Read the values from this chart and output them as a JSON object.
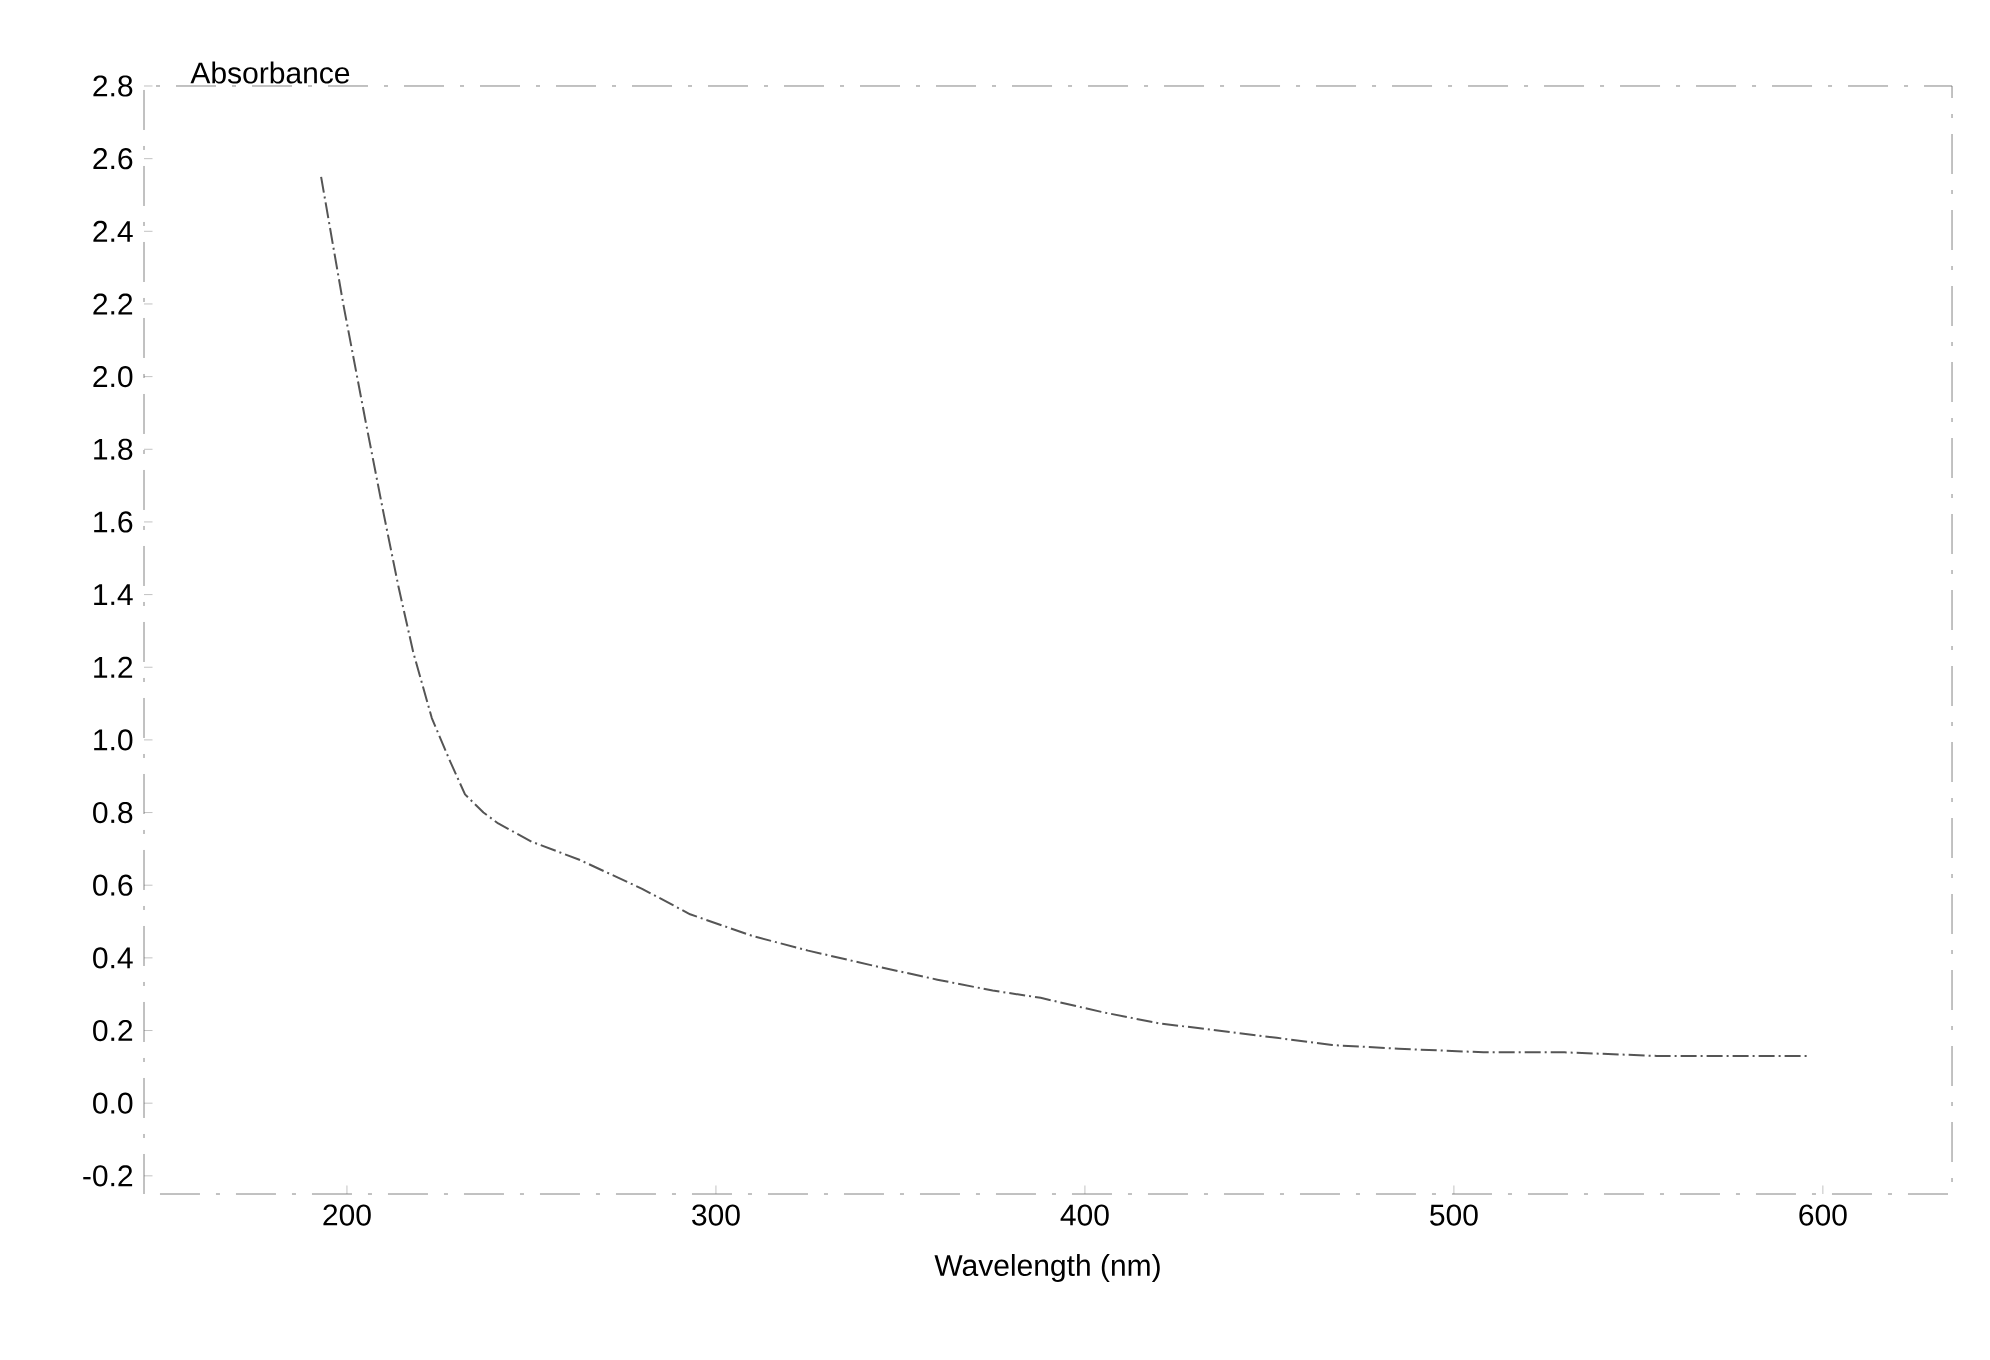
{
  "chart_data": {
    "type": "line",
    "xlabel": "Wavelength (nm)",
    "ylabel": "Absorbance",
    "x": [
      193,
      199,
      205,
      210,
      214,
      218,
      223,
      228,
      232,
      237,
      241,
      250,
      263,
      280,
      293,
      310,
      325,
      342,
      360,
      375,
      388,
      405,
      420,
      436,
      452,
      467,
      485,
      508,
      530,
      555,
      575,
      596
    ],
    "series": [
      {
        "color": "#555555",
        "values": [
          2.55,
          2.2,
          1.88,
          1.62,
          1.42,
          1.24,
          1.06,
          0.94,
          0.85,
          0.8,
          0.77,
          0.72,
          0.67,
          0.59,
          0.52,
          0.46,
          0.42,
          0.38,
          0.34,
          0.31,
          0.29,
          0.25,
          0.22,
          0.2,
          0.18,
          0.16,
          0.15,
          0.14,
          0.14,
          0.13,
          0.13,
          0.13
        ]
      }
    ],
    "xlim": [
      145,
      635
    ],
    "ylim": [
      -0.25,
      2.8
    ],
    "xticks": [
      200,
      300,
      400,
      500,
      600
    ],
    "yticks": [
      {
        "value": -0.2,
        "label": "-0.2"
      },
      {
        "value": 0,
        "label": "0.0"
      },
      {
        "value": 0.2,
        "label": "0.2"
      },
      {
        "value": 0.4,
        "label": "0.4"
      },
      {
        "value": 0.6,
        "label": "0.6"
      },
      {
        "value": 0.8,
        "label": "0.8"
      },
      {
        "value": 1,
        "label": "1.0"
      },
      {
        "value": 1.2,
        "label": "1.2"
      },
      {
        "value": 1.4,
        "label": "1.4"
      },
      {
        "value": 1.6,
        "label": "1.6"
      },
      {
        "value": 1.8,
        "label": "1.8"
      },
      {
        "value": 2,
        "label": "2.0"
      },
      {
        "value": 2.2,
        "label": "2.2"
      },
      {
        "value": 2.4,
        "label": "2.4"
      },
      {
        "value": 2.6,
        "label": "2.6"
      },
      {
        "value": 2.8,
        "label": "2.8"
      }
    ],
    "line_style": "dashed",
    "marker": "none"
  }
}
